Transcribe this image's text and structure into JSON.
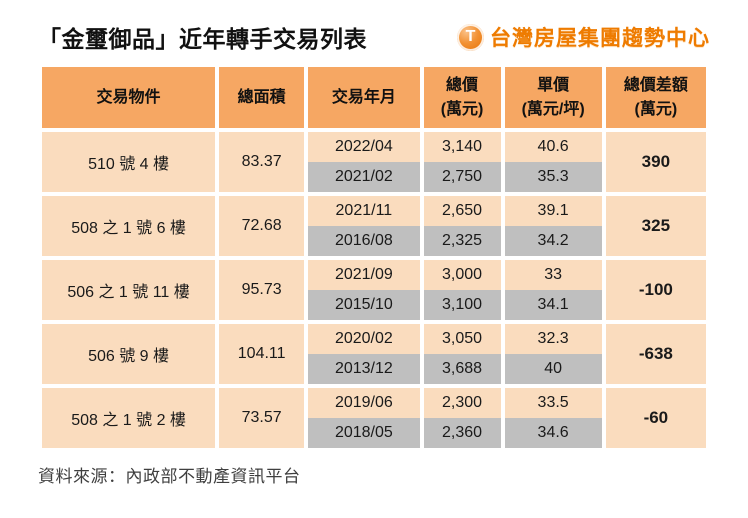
{
  "page": {
    "title": "「金璽御品」近年轉手交易列表",
    "source_note": "資料來源：內政部不動產資訊平台"
  },
  "brand": {
    "icon": "T",
    "name": "台灣房屋集團趨勢中心",
    "color": "#ee7b00"
  },
  "colors": {
    "header_bg": "#f6a763",
    "row_peach": "#fadcbe",
    "row_gray": "#bfbfbf",
    "grid_white": "#ffffff"
  },
  "chart_data": {
    "type": "table",
    "title": "「金璽御品」近年轉手交易列表",
    "columns": [
      {
        "label": "交易物件",
        "unit": ""
      },
      {
        "label": "總面積",
        "unit": ""
      },
      {
        "label": "交易年月",
        "unit": ""
      },
      {
        "label": "總價",
        "unit": "(萬元)"
      },
      {
        "label": "單價",
        "unit": "(萬元/坪)"
      },
      {
        "label": "總價差額",
        "unit": "(萬元)"
      }
    ],
    "groups": [
      {
        "object": "510 號 4 樓",
        "area": "83.37",
        "sales": [
          {
            "date": "2022/04",
            "total": "3,140",
            "unit_price": "40.6"
          },
          {
            "date": "2021/02",
            "total": "2,750",
            "unit_price": "35.3"
          }
        ],
        "price_diff": "390"
      },
      {
        "object": "508 之 1 號 6 樓",
        "area": "72.68",
        "sales": [
          {
            "date": "2021/11",
            "total": "2,650",
            "unit_price": "39.1"
          },
          {
            "date": "2016/08",
            "total": "2,325",
            "unit_price": "34.2"
          }
        ],
        "price_diff": "325"
      },
      {
        "object": "506 之 1 號 11 樓",
        "area": "95.73",
        "sales": [
          {
            "date": "2021/09",
            "total": "3,000",
            "unit_price": "33"
          },
          {
            "date": "2015/10",
            "total": "3,100",
            "unit_price": "34.1"
          }
        ],
        "price_diff": "-100"
      },
      {
        "object": "506 號 9 樓",
        "area": "104.11",
        "sales": [
          {
            "date": "2020/02",
            "total": "3,050",
            "unit_price": "32.3"
          },
          {
            "date": "2013/12",
            "total": "3,688",
            "unit_price": "40"
          }
        ],
        "price_diff": "-638"
      },
      {
        "object": "508 之 1 號 2 樓",
        "area": "73.57",
        "sales": [
          {
            "date": "2019/06",
            "total": "2,300",
            "unit_price": "33.5"
          },
          {
            "date": "2018/05",
            "total": "2,360",
            "unit_price": "34.6"
          }
        ],
        "price_diff": "-60"
      }
    ],
    "source": "內政部不動產資訊平台",
    "layout": {
      "grid": "white 4px gaps",
      "alternate_sale_row_color": "gray"
    }
  }
}
